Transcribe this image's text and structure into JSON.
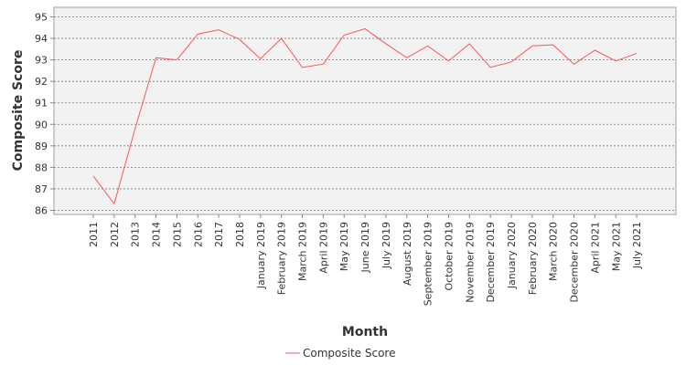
{
  "chart_data": {
    "type": "line",
    "xlabel": "Month",
    "ylabel": "Composite Score",
    "ylim": [
      86,
      95
    ],
    "yticks": [
      86,
      87,
      88,
      89,
      90,
      91,
      92,
      93,
      94,
      95
    ],
    "grid": "horizontal dashed",
    "legend_position": "bottom-center",
    "categories": [
      "2011",
      "2012",
      "2013",
      "2014",
      "2015",
      "2016",
      "2017",
      "2018",
      "January 2019",
      "February 2019",
      "March 2019",
      "April 2019",
      "May 2019",
      "June 2019",
      "July 2019",
      "August 2019",
      "September 2019",
      "October 2019",
      "November 2019",
      "December 2019",
      "January 2020",
      "February 2020",
      "March 2020",
      "December 2020",
      "April 2021",
      "May 2021",
      "July 2021"
    ],
    "series": [
      {
        "name": "Composite Score",
        "color": "#ff5555",
        "values": [
          87.6,
          86.3,
          89.8,
          93.1,
          93.0,
          94.2,
          94.4,
          93.95,
          93.05,
          94.0,
          92.65,
          92.8,
          94.15,
          94.45,
          93.75,
          93.1,
          93.65,
          92.95,
          93.75,
          92.65,
          92.9,
          93.65,
          93.7,
          92.8,
          93.45,
          92.95,
          93.3
        ]
      }
    ]
  }
}
